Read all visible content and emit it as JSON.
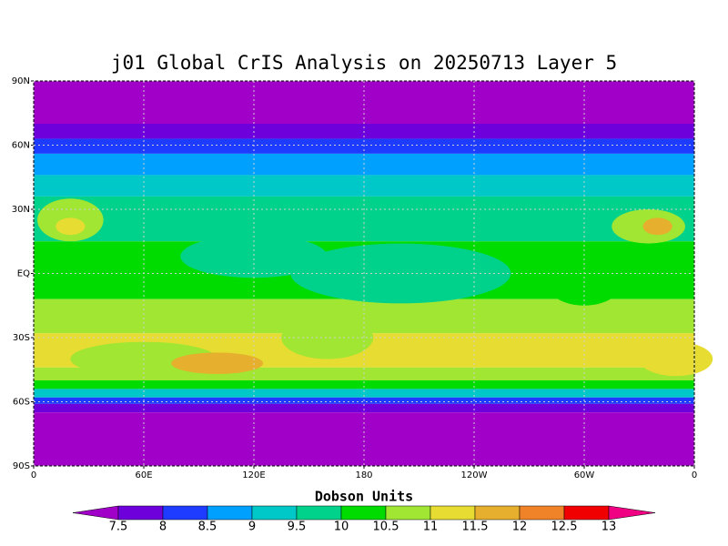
{
  "chart_data": {
    "type": "map",
    "title": "j01 Global CrIS Analysis on 20250713 Layer 5",
    "colorbar_title": "Dobson Units",
    "ylim": [
      -90,
      90
    ],
    "yticks": [
      {
        "value": 90,
        "label": "90N"
      },
      {
        "value": 60,
        "label": "60N"
      },
      {
        "value": 30,
        "label": "30N"
      },
      {
        "value": 0,
        "label": "EQ"
      },
      {
        "value": -30,
        "label": "30S"
      },
      {
        "value": -60,
        "label": "60S"
      },
      {
        "value": -90,
        "label": "90S"
      }
    ],
    "xlim": [
      0,
      360
    ],
    "xticks": [
      0,
      {
        "value": 60,
        "label": "60E"
      },
      {
        "value": 120,
        "label": "120E"
      },
      180,
      {
        "value": 240,
        "label": "120W"
      },
      {
        "value": 300,
        "label": "60W"
      },
      {
        "value": 360,
        "label": "0"
      }
    ],
    "grid": true,
    "levels": [
      7.5,
      8,
      8.5,
      9,
      9.5,
      10,
      10.5,
      11,
      11.5,
      12,
      12.5,
      13
    ],
    "colors": [
      "#a000c8",
      "#6e00dc",
      "#1e3cff",
      "#00a0ff",
      "#00c8c8",
      "#00d28c",
      "#00dc00",
      "#a0e632",
      "#e6dc32",
      "#e6af2d",
      "#f08228",
      "#f00000",
      "#f00082"
    ]
  }
}
